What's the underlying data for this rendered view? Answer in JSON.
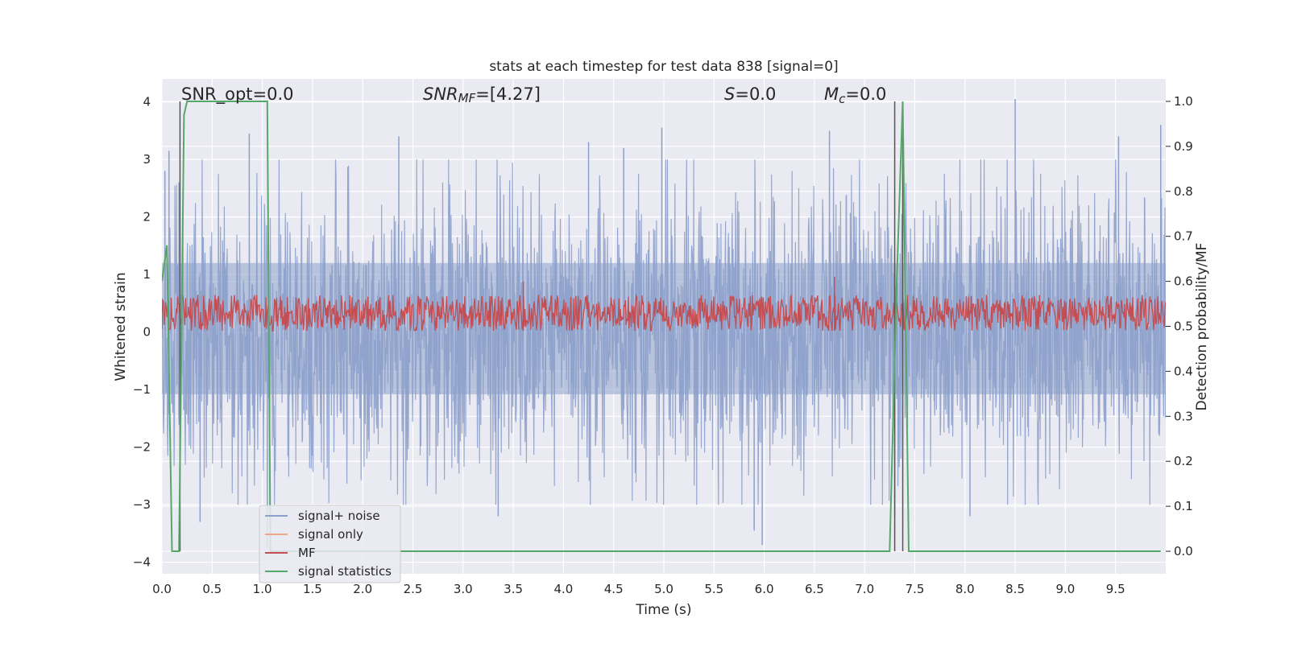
{
  "chart_data": {
    "type": "line",
    "title": "stats at each timestep for test data 838 [signal=0]",
    "xlabel": "Time (s)",
    "ylabel_left": "Whitened strain",
    "ylabel_right": "Detection probability/MF",
    "xlim": [
      0.0,
      10.0
    ],
    "ylim_left": [
      -4.2,
      4.4
    ],
    "ylim_right": [
      -0.05,
      1.05
    ],
    "x_ticks": [
      0.0,
      0.5,
      1.0,
      1.5,
      2.0,
      2.5,
      3.0,
      3.5,
      4.0,
      4.5,
      5.0,
      5.5,
      6.0,
      6.5,
      7.0,
      7.5,
      8.0,
      8.5,
      9.0,
      9.5
    ],
    "x_tick_labels": [
      "0.0",
      "0.5",
      "1.0",
      "1.5",
      "2.0",
      "2.5",
      "3.0",
      "3.5",
      "4.0",
      "4.5",
      "5.0",
      "5.5",
      "6.0",
      "6.5",
      "7.0",
      "7.5",
      "8.0",
      "8.5",
      "9.0",
      "9.5"
    ],
    "y_ticks_left": [
      -4,
      -3,
      -2,
      -1,
      0,
      1,
      2,
      3,
      4
    ],
    "y_tick_labels_left": [
      "−4",
      "−3",
      "−2",
      "−1",
      "0",
      "1",
      "2",
      "3",
      "4"
    ],
    "y_ticks_right": [
      0.0,
      0.1,
      0.2,
      0.3,
      0.4,
      0.5,
      0.6,
      0.7,
      0.8,
      0.9,
      1.0
    ],
    "y_tick_labels_right": [
      "0.0",
      "0.1",
      "0.2",
      "0.3",
      "0.4",
      "0.5",
      "0.6",
      "0.7",
      "0.8",
      "0.9",
      "1.0"
    ],
    "grid": true,
    "background": "#eaeaf2",
    "legend_position": "lower-left",
    "annotations": {
      "snr_opt": "SNR_opt=0.0",
      "snr_mf_var": "SNR",
      "snr_mf_sub": "MF",
      "snr_mf_val": "=[4.27]",
      "s_var": "S",
      "s_val": "=0.0",
      "mc_var": "M",
      "mc_sub": "c",
      "mc_val": "=0.0"
    },
    "series": [
      {
        "name": "signal+ noise",
        "color": "#8da0cb",
        "axis": "left",
        "envelope_typical": [
          -1.8,
          2.0
        ],
        "envelope_peak": [
          -3.7,
          4.0
        ],
        "sample_peaks": [
          {
            "x": 0.03,
            "y": 2.8
          },
          {
            "x": 0.07,
            "y": 3.15
          },
          {
            "x": 0.17,
            "y": 2.6
          },
          {
            "x": 0.38,
            "y": -3.3
          },
          {
            "x": 0.87,
            "y": 3.45
          },
          {
            "x": 1.05,
            "y": -3.75
          },
          {
            "x": 2.36,
            "y": 3.4
          },
          {
            "x": 3.35,
            "y": -3.2
          },
          {
            "x": 4.25,
            "y": 3.3
          },
          {
            "x": 4.6,
            "y": 3.2
          },
          {
            "x": 4.98,
            "y": 3.55
          },
          {
            "x": 5.9,
            "y": -3.45
          },
          {
            "x": 5.98,
            "y": -3.7
          },
          {
            "x": 6.65,
            "y": 3.5
          },
          {
            "x": 7.3,
            "y": -3.2
          },
          {
            "x": 8.05,
            "y": -3.2
          },
          {
            "x": 8.5,
            "y": 4.05
          },
          {
            "x": 9.53,
            "y": 3.4
          },
          {
            "x": 9.95,
            "y": 3.6
          }
        ]
      },
      {
        "name": "signal only",
        "color": "#f0a882",
        "axis": "left",
        "values": "flat at 0 (signal=0)"
      },
      {
        "name": "MF",
        "color": "#c44e52",
        "axis": "right",
        "band_right": [
          0.49,
          0.57
        ],
        "spikes": [
          {
            "x": 3.6,
            "y": 0.6
          },
          {
            "x": 6.7,
            "y": 0.61
          }
        ]
      },
      {
        "name": "signal statistics",
        "color": "#55a868",
        "axis": "right",
        "x": [
          0.0,
          0.05,
          0.1,
          0.12,
          0.17,
          0.22,
          0.25,
          1.05,
          1.08,
          1.1,
          7.25,
          7.32,
          7.38,
          7.44,
          9.95
        ],
        "y": [
          0.6,
          0.68,
          0.0,
          0.0,
          0.0,
          0.97,
          1.0,
          1.0,
          0.0,
          0.0,
          0.0,
          0.6,
          1.0,
          0.0,
          0.0
        ]
      }
    ],
    "vertical_markers": {
      "color": "#555555",
      "x": [
        0.18,
        7.3,
        7.38
      ],
      "range_right": [
        0.0,
        1.0
      ]
    }
  },
  "legend": {
    "items": [
      {
        "label": "signal+ noise",
        "color": "#8da0cb"
      },
      {
        "label": "signal only",
        "color": "#f0a882"
      },
      {
        "label": "MF",
        "color": "#c44e52"
      },
      {
        "label": "signal statistics",
        "color": "#55a868"
      }
    ]
  }
}
